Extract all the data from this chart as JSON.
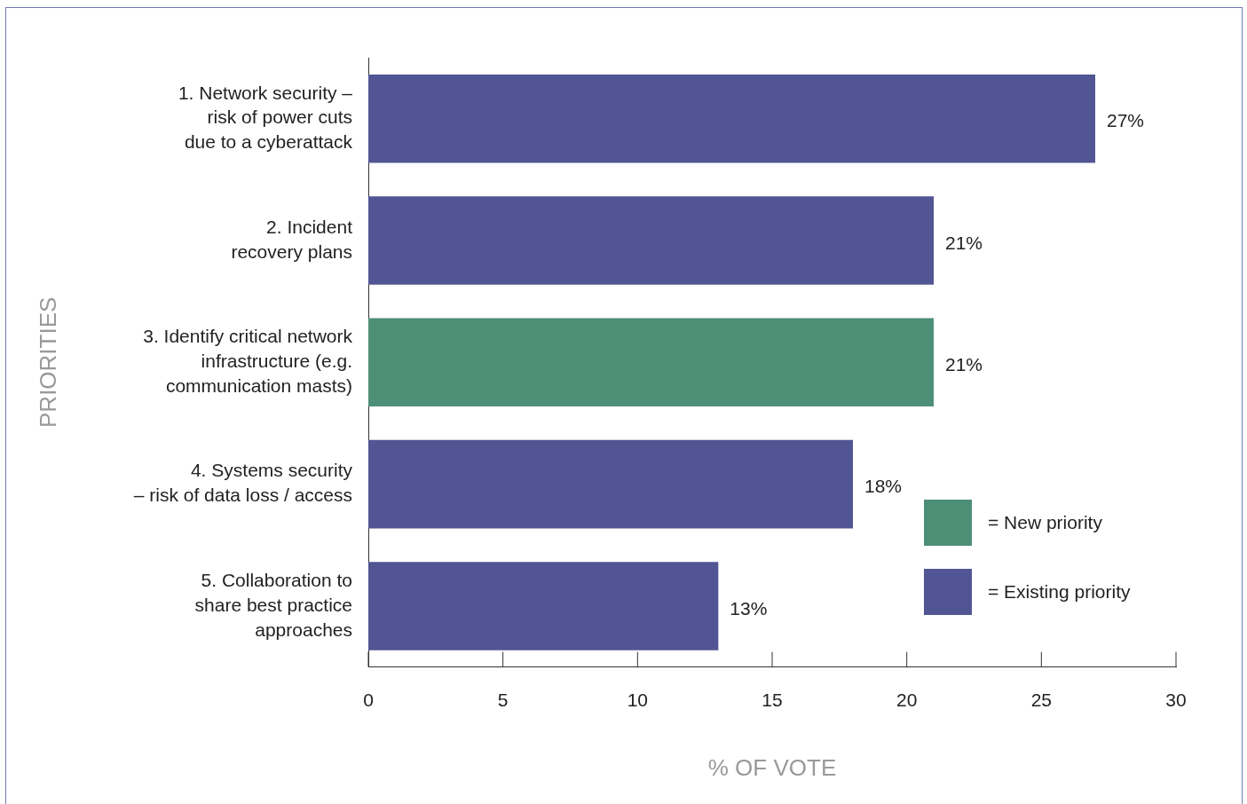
{
  "chart_data": {
    "type": "bar",
    "orientation": "horizontal",
    "stacked": true,
    "categories": [
      "1. Network security –\nrisk of power cuts\ndue to a cyberattack",
      "2. Incident\nrecovery plans",
      "3. Identify critical network\ninfrastructure (e.g.\ncommunication masts)",
      "4. Systems security\n– risk of data loss / access",
      "5. Collaboration to\nshare best practice\napproaches"
    ],
    "series": [
      {
        "name": "= New priority",
        "color": "#4e8f78",
        "values": [
          null,
          null,
          21,
          null,
          null
        ],
        "value_labels": [
          null,
          null,
          "21%",
          null,
          null
        ]
      },
      {
        "name": "= Existing priority",
        "color": "#515593",
        "values": [
          27,
          21,
          null,
          18,
          13
        ],
        "value_labels": [
          "27%",
          "21%",
          null,
          "18%",
          "13%"
        ]
      }
    ],
    "xlim": [
      0,
      30
    ],
    "xticks": [
      0,
      5,
      10,
      15,
      20,
      25,
      30
    ],
    "xlabel": "% OF VOTE",
    "ylabel": "PRIORITIES",
    "legend": "bottom right"
  }
}
